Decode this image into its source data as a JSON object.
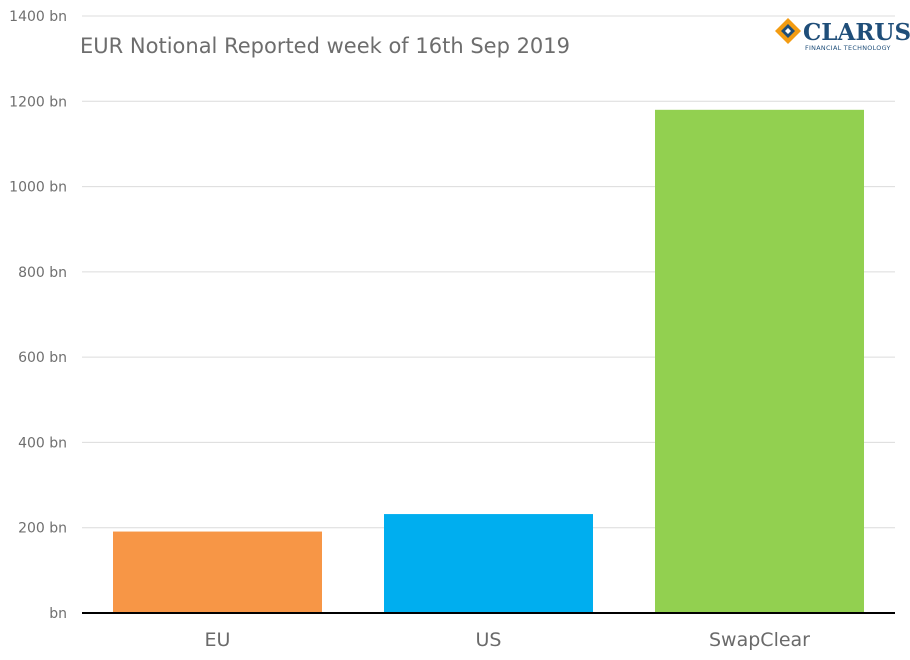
{
  "chart_data": {
    "type": "bar",
    "title": "EUR Notional Reported week of 16th Sep 2019",
    "categories": [
      "EU",
      "US",
      "SwapClear"
    ],
    "values": [
      191,
      232,
      1180
    ],
    "colors": [
      "#f79646",
      "#00aeef",
      "#92d050"
    ],
    "unit_suffix": "bn",
    "y_ticks": [
      0,
      200,
      400,
      600,
      800,
      1000,
      1200,
      1400
    ],
    "y_tick_labels": [
      "bn",
      "200 bn",
      "400 bn",
      "600 bn",
      "800 bn",
      "1000 bn",
      "1200 bn",
      "1400 bn"
    ],
    "ylim": [
      0,
      1400
    ],
    "xlabel": "",
    "ylabel": "",
    "grid": true,
    "legend": "none"
  },
  "logo": {
    "name": "CLARUS",
    "tagline": "FINANCIAL TECHNOLOGY",
    "colors": {
      "navy": "#1f4e79",
      "orange": "#f39c12"
    }
  }
}
